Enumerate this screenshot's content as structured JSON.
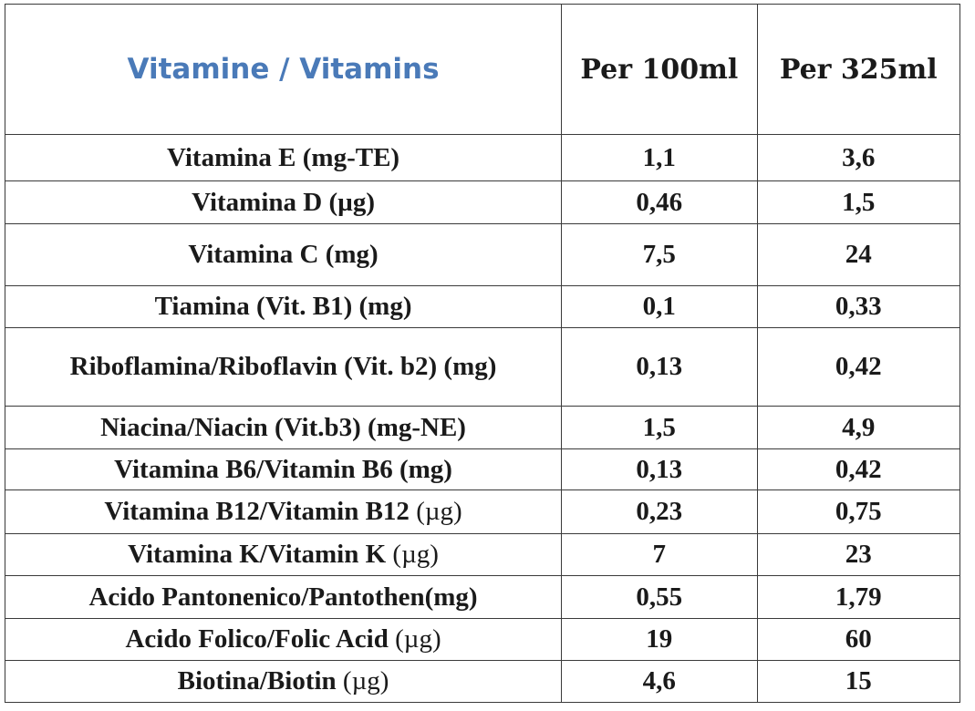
{
  "table": {
    "title": "Vitamine / Vitamins",
    "col_per100": "Per 100ml",
    "col_per325": "Per 325ml",
    "rows": [
      {
        "name": "Vitamina E (mg-TE)",
        "unit": "",
        "per100": "1,1",
        "per325": "3,6"
      },
      {
        "name": "Vitamina D (µg)",
        "unit": "",
        "per100": "0,46",
        "per325": "1,5"
      },
      {
        "name": "Vitamina C (mg)",
        "unit": "",
        "per100": "7,5",
        "per325": "24"
      },
      {
        "name": "Tiamina (Vit. B1) (mg)",
        "unit": "",
        "per100": "0,1",
        "per325": "0,33"
      },
      {
        "name": "Riboflamina/Riboflavin (Vit. b2) (mg)",
        "unit": "",
        "per100": "0,13",
        "per325": "0,42"
      },
      {
        "name": "Niacina/Niacin (Vit.b3) (mg-NE)",
        "unit": "",
        "per100": "1,5",
        "per325": "4,9"
      },
      {
        "name": "Vitamina B6/Vitamin B6 (mg)",
        "unit": "",
        "per100": "0,13",
        "per325": "0,42"
      },
      {
        "name": "Vitamina B12/Vitamin B12",
        "unit": "(µg)",
        "per100": "0,23",
        "per325": "0,75"
      },
      {
        "name": "Vitamina K/Vitamin K",
        "unit": "(µg)",
        "per100": "7",
        "per325": "23"
      },
      {
        "name": "Acido Pantonenico/Pantothen(mg)",
        "unit": "",
        "per100": "0,55",
        "per325": "1,79"
      },
      {
        "name": "Acido Folico/Folic Acid",
        "unit": "(µg)",
        "per100": "19",
        "per325": "60"
      },
      {
        "name": "Biotina/Biotin",
        "unit": "(µg)",
        "per100": "4,6",
        "per325": "15"
      }
    ]
  },
  "colors": {
    "title": "#4a7ab8",
    "text": "#1a1a1a",
    "border": "#3a3a3a"
  }
}
